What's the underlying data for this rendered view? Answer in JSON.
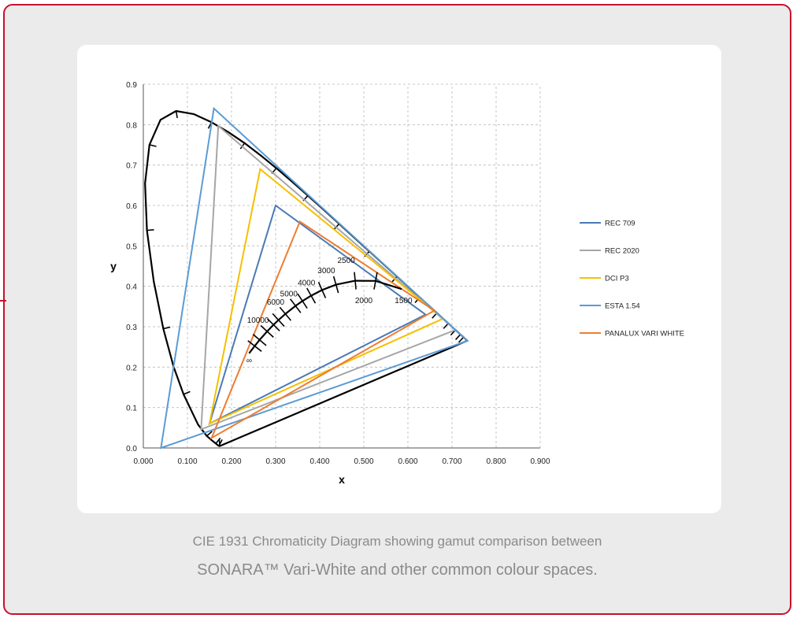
{
  "chart_data": {
    "type": "scatter",
    "title": "",
    "xlabel": "x",
    "ylabel": "y",
    "xlim": [
      0,
      0.9
    ],
    "ylim": [
      0,
      0.9
    ],
    "x_ticks": [
      "0.000",
      "0.100",
      "0.200",
      "0.300",
      "0.400",
      "0.500",
      "0.600",
      "0.700",
      "0.800",
      "0.900"
    ],
    "y_ticks": [
      "0.0",
      "0.1",
      "0.2",
      "0.3",
      "0.4",
      "0.5",
      "0.6",
      "0.7",
      "0.8",
      "0.9"
    ],
    "grid": true,
    "legend_position": "right",
    "spectral_locus": [
      [
        0.1741,
        0.005
      ],
      [
        0.1738,
        0.0049
      ],
      [
        0.1733,
        0.0048
      ],
      [
        0.1726,
        0.0048
      ],
      [
        0.1714,
        0.0051
      ],
      [
        0.1689,
        0.0069
      ],
      [
        0.1644,
        0.0109
      ],
      [
        0.1566,
        0.0177
      ],
      [
        0.144,
        0.0297
      ],
      [
        0.1241,
        0.0578
      ],
      [
        0.0913,
        0.1327
      ],
      [
        0.0687,
        0.2007
      ],
      [
        0.0454,
        0.295
      ],
      [
        0.0235,
        0.4127
      ],
      [
        0.0082,
        0.5384
      ],
      [
        0.0039,
        0.6548
      ],
      [
        0.0139,
        0.7502
      ],
      [
        0.0389,
        0.812
      ],
      [
        0.0743,
        0.8338
      ],
      [
        0.1142,
        0.8262
      ],
      [
        0.1547,
        0.8059
      ],
      [
        0.1929,
        0.7816
      ],
      [
        0.2296,
        0.7543
      ],
      [
        0.2658,
        0.7243
      ],
      [
        0.3016,
        0.6923
      ],
      [
        0.3373,
        0.6589
      ],
      [
        0.3731,
        0.6245
      ],
      [
        0.4087,
        0.5896
      ],
      [
        0.4441,
        0.5547
      ],
      [
        0.4788,
        0.5202
      ],
      [
        0.5125,
        0.4866
      ],
      [
        0.5448,
        0.4544
      ],
      [
        0.5752,
        0.4242
      ],
      [
        0.6029,
        0.3965
      ],
      [
        0.627,
        0.3725
      ],
      [
        0.6482,
        0.3514
      ],
      [
        0.6658,
        0.334
      ],
      [
        0.6801,
        0.3197
      ],
      [
        0.6915,
        0.3083
      ],
      [
        0.7006,
        0.2993
      ],
      [
        0.7079,
        0.292
      ],
      [
        0.714,
        0.2859
      ],
      [
        0.719,
        0.2809
      ],
      [
        0.723,
        0.277
      ],
      [
        0.726,
        0.274
      ],
      [
        0.7283,
        0.2717
      ],
      [
        0.73,
        0.27
      ],
      [
        0.7347,
        0.2653
      ]
    ],
    "planckian_locus": [
      [
        0.5857,
        0.3931
      ],
      [
        0.5267,
        0.4133
      ],
      [
        0.4804,
        0.4138
      ],
      [
        0.4369,
        0.4041
      ],
      [
        0.4053,
        0.3907
      ],
      [
        0.3805,
        0.3768
      ],
      [
        0.3608,
        0.3636
      ],
      [
        0.3451,
        0.3516
      ],
      [
        0.3221,
        0.3318
      ],
      [
        0.3064,
        0.3166
      ],
      [
        0.2952,
        0.3048
      ],
      [
        0.2807,
        0.2884
      ],
      [
        0.2637,
        0.2674
      ],
      [
        0.2525,
        0.2522
      ],
      [
        0.2399,
        0.2342
      ]
    ],
    "cct_labels": [
      {
        "text": "10000",
        "x": 0.26,
        "y": 0.31
      },
      {
        "text": "6000",
        "x": 0.3,
        "y": 0.355
      },
      {
        "text": "5000",
        "x": 0.33,
        "y": 0.375
      },
      {
        "text": "4000",
        "x": 0.37,
        "y": 0.402
      },
      {
        "text": "3000",
        "x": 0.415,
        "y": 0.432
      },
      {
        "text": "2500",
        "x": 0.46,
        "y": 0.458
      },
      {
        "text": "2000",
        "x": 0.5,
        "y": 0.358
      },
      {
        "text": "1500",
        "x": 0.59,
        "y": 0.358
      },
      {
        "text": "∞",
        "x": 0.24,
        "y": 0.21
      }
    ],
    "series": [
      {
        "name": "REC 709",
        "color": "#4a7ab5",
        "x": [
          0.64,
          0.3,
          0.15
        ],
        "y": [
          0.33,
          0.6,
          0.06
        ]
      },
      {
        "name": "REC 2020",
        "color": "#a6a6a6",
        "x": [
          0.708,
          0.17,
          0.131
        ],
        "y": [
          0.292,
          0.797,
          0.046
        ]
      },
      {
        "name": "DCI P3",
        "color": "#f5c000",
        "x": [
          0.68,
          0.265,
          0.15
        ],
        "y": [
          0.32,
          0.69,
          0.06
        ]
      },
      {
        "name": "ESTA 1.54",
        "color": "#5b9bd5",
        "x": [
          0.735,
          0.16,
          0.04
        ],
        "y": [
          0.265,
          0.84,
          0.0
        ]
      },
      {
        "name": "PANALUX VARI WHITE",
        "color": "#ed7d31",
        "x": [
          0.66,
          0.355,
          0.155
        ],
        "y": [
          0.34,
          0.56,
          0.025
        ]
      }
    ]
  },
  "caption": {
    "line1": "CIE 1931 Chromaticity Diagram showing gamut comparison between",
    "line2": "SONARA™ Vari-White and other common colour spaces."
  }
}
